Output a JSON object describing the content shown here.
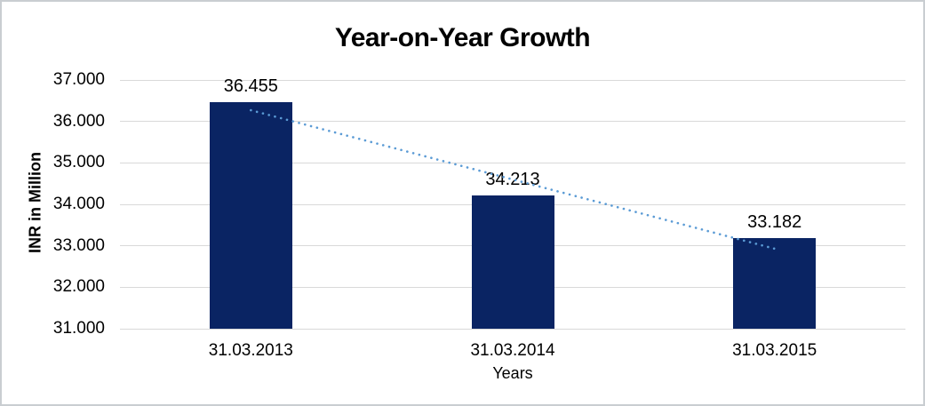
{
  "chart_data": {
    "type": "bar",
    "title": "Year-on-Year Growth",
    "xlabel": "Years",
    "ylabel": "INR in Million",
    "categories": [
      "31.03.2013",
      "31.03.2014",
      "31.03.2015"
    ],
    "values": [
      36455,
      34213,
      33182
    ],
    "value_labels": [
      "36.455",
      "34.213",
      "33.182"
    ],
    "ylim": [
      31000,
      37000
    ],
    "y_tick_step": 1000,
    "y_tick_labels": [
      "31.000",
      "32.000",
      "33.000",
      "34.000",
      "35.000",
      "36.000",
      "37.000"
    ],
    "grid": "horizontal",
    "legend": "none",
    "bar_color": "#0a2463",
    "gridline_color": "#d9d9d9",
    "trendline": {
      "style": "dotted",
      "color": "#5b9bd5",
      "start": {
        "category_index": 0,
        "value": 36270
      },
      "end": {
        "category_index": 2,
        "value": 32930
      }
    }
  }
}
